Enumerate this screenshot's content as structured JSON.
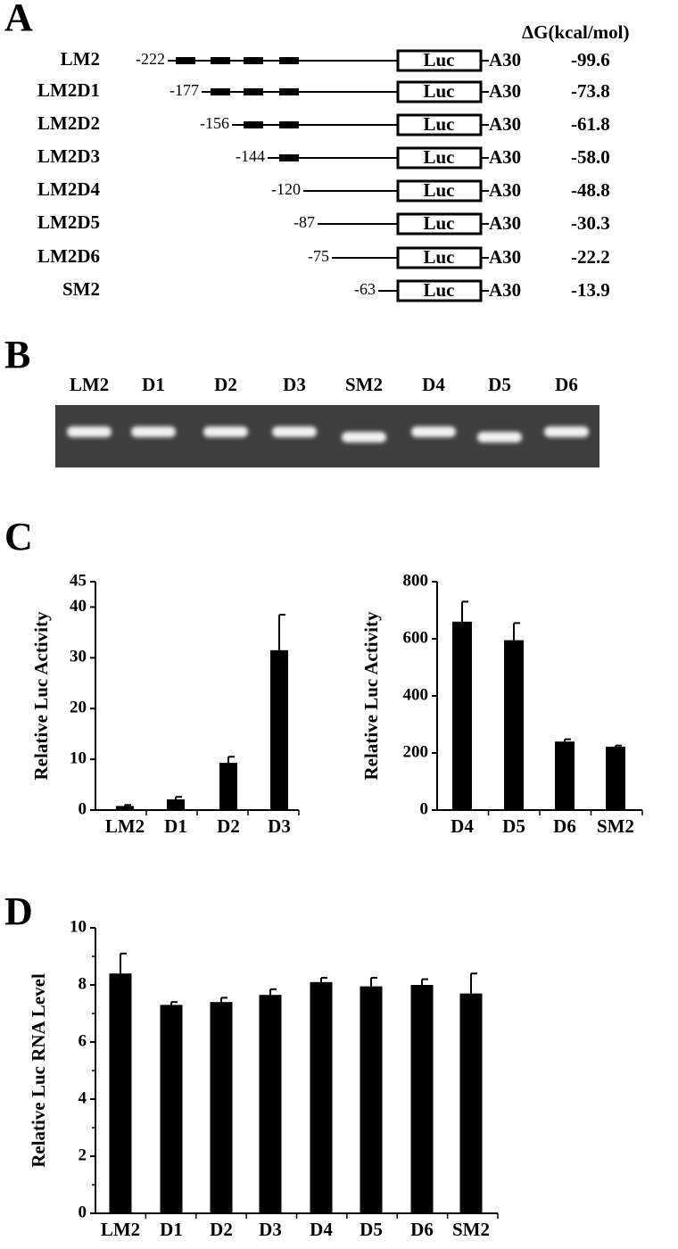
{
  "panel_a": {
    "label": "A",
    "header": "ΔG(kcal/mol)",
    "luc": "Luc",
    "tail": "A30",
    "rows": [
      {
        "name": "LM2",
        "start": "-222",
        "dg": "-99.6"
      },
      {
        "name": "LM2D1",
        "start": "-177",
        "dg": "-73.8"
      },
      {
        "name": "LM2D2",
        "start": "-156",
        "dg": "-61.8"
      },
      {
        "name": "LM2D3",
        "start": "-144",
        "dg": "-58.0"
      },
      {
        "name": "LM2D4",
        "start": "-120",
        "dg": "-48.8"
      },
      {
        "name": "LM2D5",
        "start": "-87",
        "dg": "-30.3"
      },
      {
        "name": "LM2D6",
        "start": "-75",
        "dg": "-22.2"
      },
      {
        "name": "SM2",
        "start": "-63",
        "dg": "-13.9"
      }
    ]
  },
  "panel_b": {
    "label": "B",
    "lanes": [
      "LM2",
      "D1",
      "D2",
      "D3",
      "SM2",
      "D4",
      "D5",
      "D6"
    ]
  },
  "panel_c": {
    "label": "C"
  },
  "panel_d": {
    "label": "D"
  },
  "chart_data": [
    {
      "type": "bar",
      "ylabel": "Relative Luc Activity",
      "categories": [
        "LM2",
        "D1",
        "D2",
        "D3"
      ],
      "values": [
        0.8,
        2.1,
        9.3,
        31.5
      ],
      "errors": [
        0.2,
        0.5,
        1.2,
        7
      ],
      "color": "#000000",
      "ylim": [
        0,
        45
      ],
      "yticks": [
        0,
        10,
        20,
        30,
        40,
        45
      ]
    },
    {
      "type": "bar",
      "ylabel": "Relative Luc Activity",
      "categories": [
        "D4",
        "D5",
        "D6",
        "SM2"
      ],
      "values": [
        660,
        595,
        240,
        222
      ],
      "errors": [
        70,
        60,
        8,
        4
      ],
      "color": "#000000",
      "ylim": [
        0,
        800
      ],
      "yticks": [
        0,
        200,
        400,
        600,
        800
      ]
    },
    {
      "type": "bar",
      "ylabel": "Relative Luc RNA Level",
      "categories": [
        "LM2",
        "D1",
        "D2",
        "D3",
        "D4",
        "D5",
        "D6",
        "SM2"
      ],
      "values": [
        8.4,
        7.3,
        7.4,
        7.65,
        8.1,
        7.95,
        8.0,
        7.7
      ],
      "errors": [
        0.7,
        0.1,
        0.15,
        0.2,
        0.15,
        0.3,
        0.2,
        0.7
      ],
      "color": "#000000",
      "ylim": [
        0,
        10
      ],
      "yticks": [
        0,
        2,
        4,
        6,
        8,
        10
      ],
      "minor_yticks": [
        1,
        3,
        5,
        7,
        9
      ]
    }
  ]
}
